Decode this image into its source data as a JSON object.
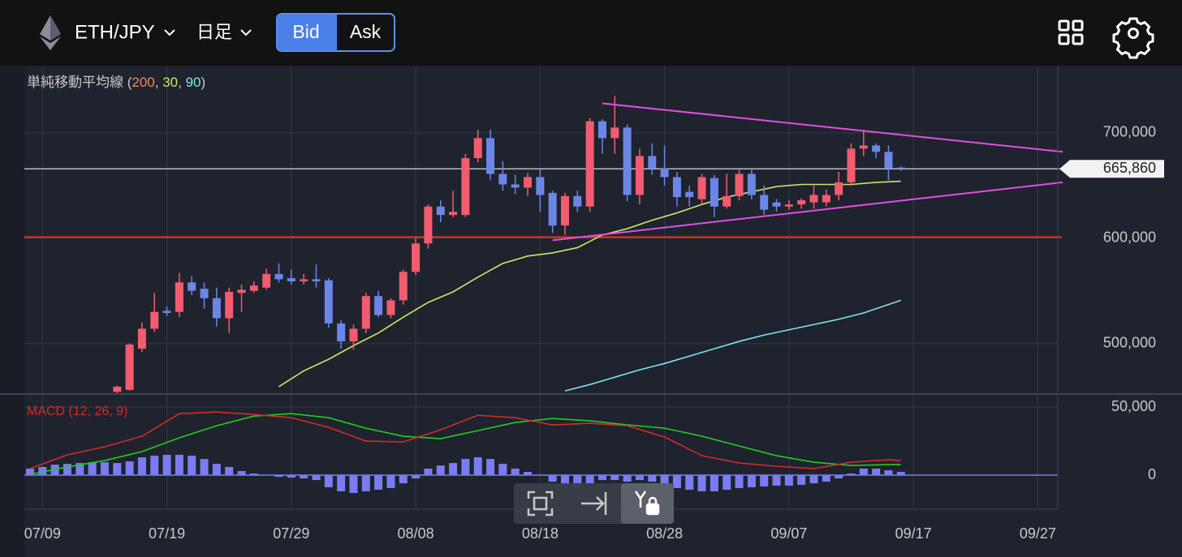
{
  "header": {
    "pair": "ETH/JPY",
    "interval": "日足",
    "bid": "Bid",
    "ask": "Ask"
  },
  "chart_data": [
    {
      "type": "candlestick",
      "legend": {
        "label": "単純移動平均線",
        "open": " (",
        "separator": ", ",
        "close": ")",
        "color": "#c8c8c8"
      },
      "x": [
        "07/15",
        "07/16",
        "07/17",
        "07/18",
        "07/19",
        "07/20",
        "07/21",
        "07/22",
        "07/23",
        "07/24",
        "07/25",
        "07/26",
        "07/27",
        "07/28",
        "07/29",
        "07/30",
        "07/31",
        "08/01",
        "08/02",
        "08/03",
        "08/04",
        "08/05",
        "08/06",
        "08/07",
        "08/08",
        "08/09",
        "08/10",
        "08/11",
        "08/12",
        "08/13",
        "08/14",
        "08/15",
        "08/16",
        "08/17",
        "08/18",
        "08/19",
        "08/20",
        "08/21",
        "08/22",
        "08/23",
        "08/24",
        "08/25",
        "08/26",
        "08/27",
        "08/28",
        "08/29",
        "08/30",
        "08/31",
        "09/01",
        "09/02",
        "09/03",
        "09/04",
        "09/05",
        "09/06",
        "09/07",
        "09/08",
        "09/09",
        "09/10",
        "09/11",
        "09/12",
        "09/13",
        "09/14",
        "09/15",
        "09/16"
      ],
      "open": [
        454000,
        456000,
        495000,
        514000,
        531000,
        530000,
        558000,
        552000,
        543000,
        524000,
        548000,
        550000,
        553000,
        566000,
        562000,
        559000,
        561000,
        560000,
        519000,
        502000,
        514000,
        545000,
        527000,
        541000,
        568000,
        595000,
        630000,
        622000,
        622000,
        676000,
        695000,
        661000,
        651000,
        648000,
        658000,
        643000,
        612000,
        640000,
        630000,
        711000,
        695000,
        705000,
        641000,
        678000,
        666000,
        658000,
        644000,
        637000,
        657000,
        630000,
        640000,
        661000,
        641000,
        634000,
        630000,
        632000,
        634000,
        634000,
        641000,
        653000,
        685000,
        688000,
        682000,
        667000
      ],
      "high": [
        460000,
        500000,
        520000,
        548000,
        535000,
        567000,
        564000,
        558000,
        553000,
        553000,
        556000,
        559000,
        571000,
        576000,
        570000,
        566000,
        575000,
        562000,
        522000,
        518000,
        548000,
        550000,
        543000,
        570000,
        600000,
        632000,
        636000,
        645000,
        680000,
        703000,
        703000,
        673000,
        660000,
        662000,
        665000,
        645000,
        643000,
        645000,
        714000,
        713000,
        735000,
        708000,
        685000,
        690000,
        688000,
        663000,
        650000,
        661000,
        660000,
        661000,
        665000,
        665000,
        650000,
        637000,
        636000,
        638000,
        650000,
        646000,
        663000,
        690000,
        703000,
        690000,
        688000,
        668000
      ],
      "low": [
        453000,
        455000,
        492000,
        511000,
        526000,
        525000,
        546000,
        533000,
        516000,
        510000,
        530000,
        548000,
        551000,
        558000,
        556000,
        556000,
        553000,
        515000,
        495000,
        494000,
        510000,
        525000,
        524000,
        537000,
        565000,
        590000,
        615000,
        620000,
        620000,
        672000,
        655000,
        645000,
        642000,
        640000,
        625000,
        605000,
        603000,
        625000,
        625000,
        680000,
        680000,
        635000,
        632000,
        660000,
        650000,
        630000,
        630000,
        632000,
        620000,
        628000,
        636000,
        637000,
        622000,
        625000,
        627000,
        628000,
        628000,
        630000,
        636000,
        650000,
        678000,
        676000,
        655000,
        664000
      ],
      "close": [
        459000,
        499000,
        514000,
        530000,
        529000,
        558000,
        550000,
        543000,
        524000,
        549000,
        551000,
        555000,
        566000,
        561000,
        559000,
        561000,
        559000,
        519000,
        502000,
        514000,
        545000,
        527000,
        541000,
        568000,
        595000,
        630000,
        622000,
        625000,
        676000,
        695000,
        661000,
        651000,
        648000,
        658000,
        641000,
        612000,
        640000,
        630000,
        711000,
        695000,
        705000,
        641000,
        678000,
        666000,
        658000,
        639000,
        639000,
        658000,
        630000,
        640000,
        661000,
        641000,
        627000,
        630000,
        632000,
        636000,
        641000,
        641000,
        653000,
        685000,
        688000,
        682000,
        666000,
        665860
      ],
      "up_color": "#f25c6e",
      "down_color": "#6b86e6",
      "moving_averages": [
        {
          "name": "200",
          "color": "#f08a5d"
        },
        {
          "name": "30",
          "color": "#c6e86b",
          "x": [
            "07/28",
            "07/30",
            "08/01",
            "08/03",
            "08/05",
            "08/07",
            "08/09",
            "08/11",
            "08/13",
            "08/15",
            "08/17",
            "08/19",
            "08/21",
            "08/23",
            "08/25",
            "08/27",
            "08/29",
            "08/31",
            "09/02",
            "09/04",
            "09/06",
            "09/08",
            "09/10",
            "09/12",
            "09/14",
            "09/16"
          ],
          "values": [
            459000,
            474000,
            485000,
            498000,
            510000,
            525000,
            539000,
            549000,
            563000,
            576000,
            583000,
            586000,
            591000,
            603000,
            609000,
            617000,
            624000,
            632000,
            639000,
            644000,
            649000,
            651000,
            651000,
            651000,
            653000,
            654000
          ]
        },
        {
          "name": "90",
          "color": "#7fe3ef",
          "x": [
            "08/20",
            "08/22",
            "08/24",
            "08/26",
            "08/28",
            "08/30",
            "09/01",
            "09/03",
            "09/05",
            "09/07",
            "09/09",
            "09/11",
            "09/13",
            "09/15",
            "09/16"
          ],
          "values": [
            455000,
            461000,
            468000,
            475000,
            481000,
            488000,
            495000,
            502000,
            508000,
            513000,
            518000,
            523000,
            529000,
            537000,
            541000
          ]
        }
      ],
      "hlines": [
        {
          "value": 601000,
          "color": "#e8341c"
        }
      ],
      "current_price": {
        "value": 665860,
        "label": "665,860",
        "color": "#b8bcc4"
      },
      "trendlines": [
        {
          "x": [
            "08/23",
            "09/29"
          ],
          "values": [
            728000,
            682000
          ],
          "color": "#e04fe0"
        },
        {
          "x": [
            "08/19",
            "09/29"
          ],
          "values": [
            598000,
            653000
          ],
          "color": "#e04fe0"
        }
      ],
      "xlim": [
        "07/08",
        "09/29"
      ],
      "xticks": [
        "07/09",
        "07/19",
        "07/29",
        "08/08",
        "08/18",
        "08/28",
        "09/07",
        "09/17",
        "09/27"
      ],
      "ylim": [
        452000,
        763000
      ],
      "yticks": [
        {
          "value": 500000,
          "label": "500,000"
        },
        {
          "value": 600000,
          "label": "600,000"
        },
        {
          "value": 700000,
          "label": "700,000"
        }
      ],
      "grid": true
    },
    {
      "type": "macd",
      "label": "MACD (12, 26, 9)",
      "label_color": "#d42a2a",
      "histogram": {
        "color": "#7a7cf2",
        "x": [
          "07/08",
          "07/09",
          "07/10",
          "07/11",
          "07/12",
          "07/13",
          "07/14",
          "07/15",
          "07/16",
          "07/17",
          "07/18",
          "07/19",
          "07/20",
          "07/21",
          "07/22",
          "07/23",
          "07/24",
          "07/25",
          "07/26",
          "07/27",
          "07/28",
          "07/29",
          "07/30",
          "07/31",
          "08/01",
          "08/02",
          "08/03",
          "08/04",
          "08/05",
          "08/06",
          "08/07",
          "08/08",
          "08/09",
          "08/10",
          "08/11",
          "08/12",
          "08/13",
          "08/14",
          "08/15",
          "08/16",
          "08/17",
          "08/18",
          "08/19",
          "08/20",
          "08/21",
          "08/22",
          "08/23",
          "08/24",
          "08/25",
          "08/26",
          "08/27",
          "08/28",
          "08/29",
          "08/30",
          "08/31",
          "09/01",
          "09/02",
          "09/03",
          "09/04",
          "09/05",
          "09/06",
          "09/07",
          "09/08",
          "09/09",
          "09/10",
          "09/11",
          "09/12",
          "09/13",
          "09/14",
          "09/15",
          "09/16"
        ],
        "values": [
          4800,
          6000,
          7700,
          8300,
          8900,
          9500,
          9500,
          8900,
          10100,
          13100,
          14300,
          14900,
          14900,
          14300,
          11900,
          8300,
          6000,
          3000,
          1200,
          0,
          -1200,
          -1800,
          -2400,
          -3600,
          -8900,
          -11900,
          -13100,
          -11900,
          -10700,
          -9500,
          -6000,
          -2400,
          4800,
          7100,
          8900,
          11900,
          13100,
          11900,
          8300,
          4800,
          2400,
          0,
          -4800,
          -7100,
          -8900,
          -6000,
          -3600,
          -3600,
          -4800,
          -3600,
          -4800,
          -7100,
          -9500,
          -10700,
          -11900,
          -11900,
          -10700,
          -9500,
          -8900,
          -8300,
          -7700,
          -7700,
          -7100,
          -6000,
          -4800,
          -2400,
          1200,
          4800,
          4800,
          3600,
          2400
        ]
      },
      "macd_line": {
        "color": "#d42a2a",
        "x": [
          "07/08",
          "07/11",
          "07/14",
          "07/17",
          "07/20",
          "07/23",
          "07/26",
          "07/29",
          "08/01",
          "08/04",
          "08/07",
          "08/10",
          "08/13",
          "08/16",
          "08/19",
          "08/22",
          "08/25",
          "08/28",
          "08/31",
          "09/03",
          "09/06",
          "09/09",
          "09/12",
          "09/15",
          "09/16"
        ],
        "values": [
          4800,
          14900,
          20800,
          28600,
          45200,
          46400,
          44600,
          42200,
          35100,
          25000,
          24400,
          33300,
          44000,
          42200,
          36900,
          38100,
          36300,
          28000,
          14300,
          8900,
          6500,
          4800,
          9500,
          11300,
          10700
        ]
      },
      "signal_line": {
        "color": "#22cc22",
        "x": [
          "07/08",
          "07/11",
          "07/14",
          "07/17",
          "07/20",
          "07/23",
          "07/26",
          "07/29",
          "08/01",
          "08/04",
          "08/07",
          "08/10",
          "08/13",
          "08/16",
          "08/19",
          "08/22",
          "08/25",
          "08/28",
          "08/31",
          "09/03",
          "09/06",
          "09/09",
          "09/12",
          "09/15",
          "09/16"
        ],
        "values": [
          600,
          6000,
          10700,
          17300,
          27400,
          36300,
          43400,
          45200,
          42200,
          34500,
          28600,
          26800,
          32700,
          38700,
          41600,
          39900,
          36900,
          34500,
          28600,
          21400,
          14300,
          9500,
          7100,
          7700,
          7700
        ]
      },
      "ylim": [
        -25000,
        59000
      ],
      "yticks": [
        0,
        {
          "value": 50000,
          "label": "50,000"
        }
      ],
      "grid": true
    }
  ]
}
